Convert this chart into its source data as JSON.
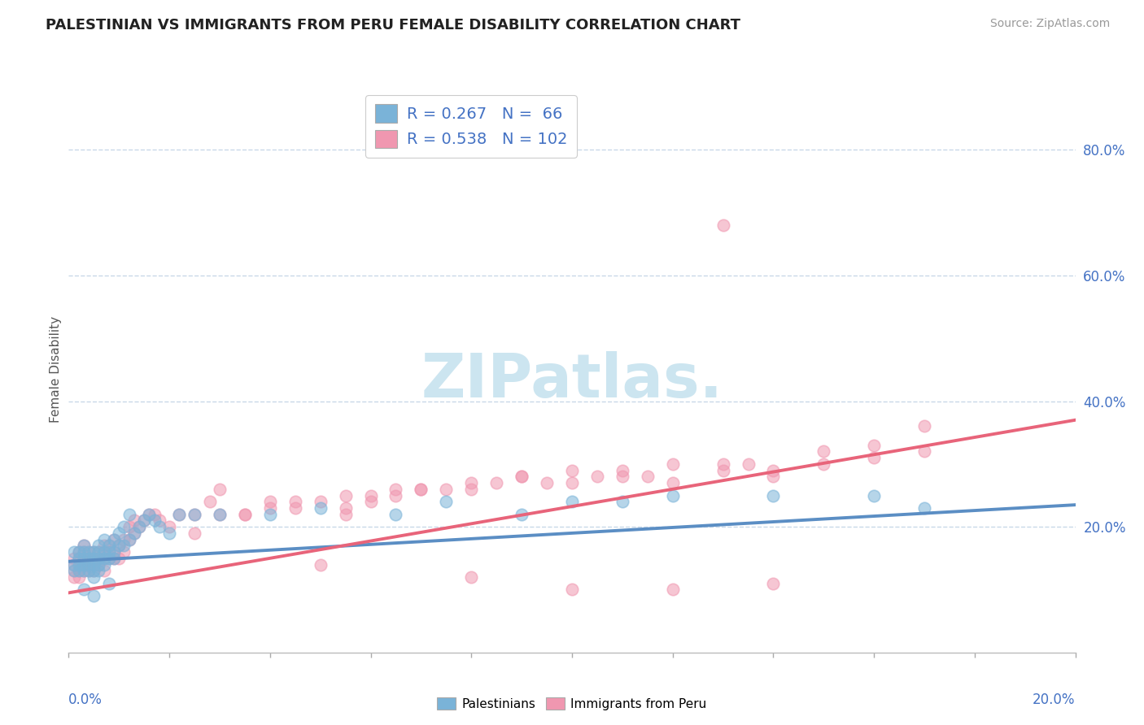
{
  "title": "PALESTINIAN VS IMMIGRANTS FROM PERU FEMALE DISABILITY CORRELATION CHART",
  "source": "Source: ZipAtlas.com",
  "ylabel": "Female Disability",
  "right_yticks": [
    "80.0%",
    "60.0%",
    "40.0%",
    "20.0%"
  ],
  "right_ytick_vals": [
    0.8,
    0.6,
    0.4,
    0.2
  ],
  "xmin": 0.0,
  "xmax": 0.2,
  "ymin": 0.0,
  "ymax": 0.9,
  "legend_r1": "R = 0.267",
  "legend_n1": "N =  66",
  "legend_r2": "R = 0.538",
  "legend_n2": "N = 102",
  "color_blue": "#7ab3d8",
  "color_pink": "#f097b0",
  "color_blue_line": "#5b8ec4",
  "color_pink_line": "#e8647a",
  "color_blue_text": "#4472c4",
  "watermark_color": "#cce5f0",
  "grid_color": "#c8d8e8",
  "bg_color": "#ffffff",
  "blue_scatter_x": [
    0.001,
    0.001,
    0.001,
    0.002,
    0.002,
    0.002,
    0.002,
    0.003,
    0.003,
    0.003,
    0.003,
    0.003,
    0.004,
    0.004,
    0.004,
    0.004,
    0.005,
    0.005,
    0.005,
    0.005,
    0.005,
    0.006,
    0.006,
    0.006,
    0.006,
    0.006,
    0.007,
    0.007,
    0.007,
    0.007,
    0.008,
    0.008,
    0.008,
    0.009,
    0.009,
    0.009,
    0.01,
    0.01,
    0.011,
    0.011,
    0.012,
    0.012,
    0.013,
    0.014,
    0.015,
    0.016,
    0.017,
    0.018,
    0.02,
    0.022,
    0.025,
    0.03,
    0.04,
    0.05,
    0.065,
    0.075,
    0.09,
    0.1,
    0.11,
    0.12,
    0.14,
    0.16,
    0.17,
    0.003,
    0.005,
    0.008
  ],
  "blue_scatter_y": [
    0.14,
    0.16,
    0.13,
    0.15,
    0.14,
    0.13,
    0.16,
    0.15,
    0.14,
    0.13,
    0.16,
    0.17,
    0.15,
    0.13,
    0.16,
    0.14,
    0.15,
    0.14,
    0.13,
    0.16,
    0.12,
    0.15,
    0.14,
    0.16,
    0.13,
    0.17,
    0.16,
    0.15,
    0.14,
    0.18,
    0.16,
    0.15,
    0.17,
    0.16,
    0.15,
    0.18,
    0.17,
    0.19,
    0.17,
    0.2,
    0.18,
    0.22,
    0.19,
    0.2,
    0.21,
    0.22,
    0.21,
    0.2,
    0.19,
    0.22,
    0.22,
    0.22,
    0.22,
    0.23,
    0.22,
    0.24,
    0.22,
    0.24,
    0.24,
    0.25,
    0.25,
    0.25,
    0.23,
    0.1,
    0.09,
    0.11
  ],
  "pink_scatter_x": [
    0.001,
    0.001,
    0.001,
    0.001,
    0.002,
    0.002,
    0.002,
    0.002,
    0.003,
    0.003,
    0.003,
    0.003,
    0.003,
    0.004,
    0.004,
    0.004,
    0.004,
    0.005,
    0.005,
    0.005,
    0.005,
    0.006,
    0.006,
    0.006,
    0.007,
    0.007,
    0.007,
    0.007,
    0.008,
    0.008,
    0.008,
    0.009,
    0.009,
    0.009,
    0.01,
    0.01,
    0.011,
    0.011,
    0.012,
    0.012,
    0.013,
    0.013,
    0.014,
    0.015,
    0.016,
    0.017,
    0.018,
    0.02,
    0.022,
    0.025,
    0.028,
    0.03,
    0.035,
    0.04,
    0.045,
    0.05,
    0.055,
    0.06,
    0.065,
    0.07,
    0.08,
    0.09,
    0.095,
    0.1,
    0.11,
    0.12,
    0.13,
    0.14,
    0.15,
    0.16,
    0.17,
    0.03,
    0.055,
    0.08,
    0.1,
    0.12,
    0.14,
    0.025,
    0.04,
    0.06,
    0.075,
    0.11,
    0.045,
    0.07,
    0.085,
    0.105,
    0.055,
    0.13,
    0.15,
    0.17,
    0.035,
    0.065,
    0.09,
    0.115,
    0.135,
    0.16,
    0.05,
    0.08,
    0.1,
    0.12,
    0.14,
    0.13
  ],
  "pink_scatter_y": [
    0.13,
    0.15,
    0.12,
    0.14,
    0.16,
    0.13,
    0.15,
    0.12,
    0.15,
    0.14,
    0.13,
    0.16,
    0.17,
    0.15,
    0.13,
    0.16,
    0.14,
    0.14,
    0.13,
    0.15,
    0.16,
    0.15,
    0.14,
    0.16,
    0.16,
    0.15,
    0.13,
    0.17,
    0.16,
    0.15,
    0.17,
    0.16,
    0.15,
    0.18,
    0.17,
    0.15,
    0.18,
    0.16,
    0.18,
    0.2,
    0.19,
    0.21,
    0.2,
    0.21,
    0.22,
    0.22,
    0.21,
    0.2,
    0.22,
    0.22,
    0.24,
    0.22,
    0.22,
    0.24,
    0.23,
    0.24,
    0.23,
    0.25,
    0.26,
    0.26,
    0.27,
    0.28,
    0.27,
    0.29,
    0.29,
    0.3,
    0.29,
    0.29,
    0.3,
    0.31,
    0.32,
    0.26,
    0.25,
    0.26,
    0.27,
    0.27,
    0.28,
    0.19,
    0.23,
    0.24,
    0.26,
    0.28,
    0.24,
    0.26,
    0.27,
    0.28,
    0.22,
    0.3,
    0.32,
    0.36,
    0.22,
    0.25,
    0.28,
    0.28,
    0.3,
    0.33,
    0.14,
    0.12,
    0.1,
    0.1,
    0.11,
    0.68
  ],
  "blue_trend_x": [
    0.0,
    0.2
  ],
  "blue_trend_y": [
    0.145,
    0.235
  ],
  "pink_trend_x": [
    0.0,
    0.2
  ],
  "pink_trend_y": [
    0.095,
    0.37
  ]
}
